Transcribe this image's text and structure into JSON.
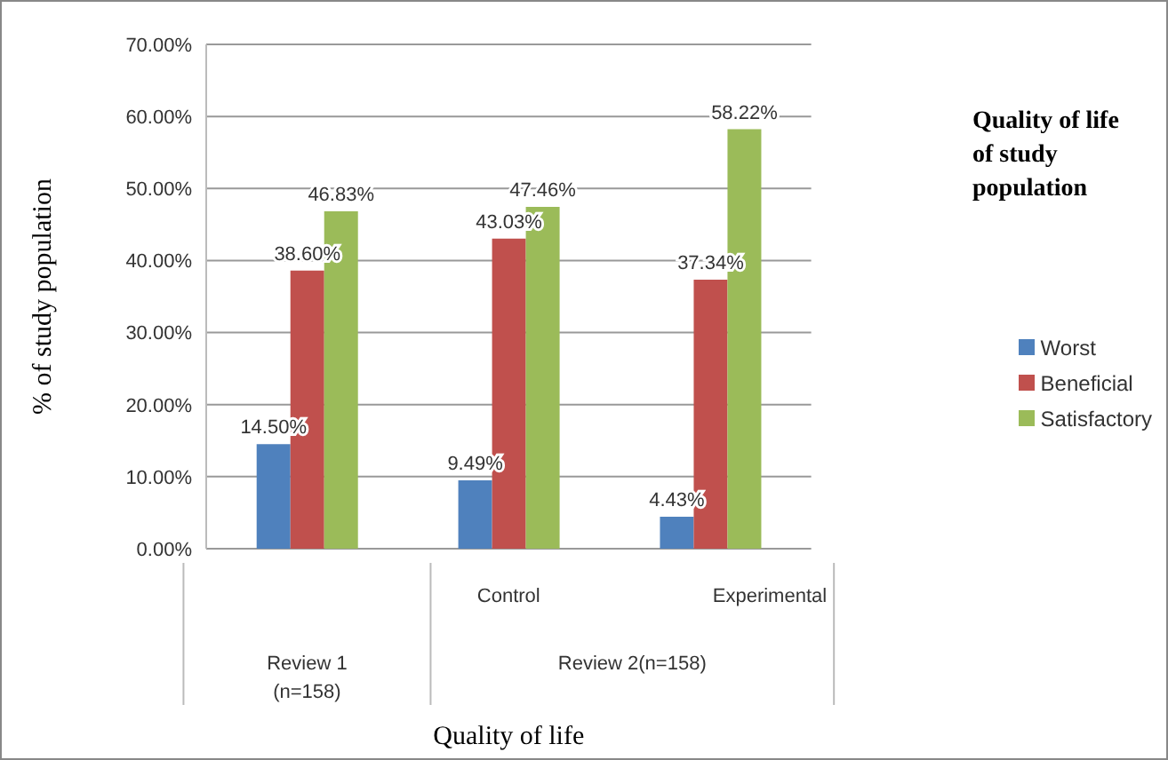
{
  "chart_data": {
    "type": "bar",
    "xlabel": "Quality of life",
    "ylabel": "% of study population",
    "legend_title": "Quality of life of study population",
    "categories": [
      null,
      "Control",
      "Experimental"
    ],
    "series": [
      {
        "name": "Worst",
        "color": "#4f81bd",
        "values": [
          14.5,
          9.49,
          4.43
        ],
        "value_labels": [
          "14.50%",
          "9.49%",
          "4.43%"
        ]
      },
      {
        "name": "Beneficial",
        "color": "#c0504d",
        "values": [
          38.6,
          43.03,
          37.34
        ],
        "value_labels": [
          "38.60%",
          "43.03%",
          "37.34%"
        ]
      },
      {
        "name": "Satisfactory",
        "color": "#9bbb59",
        "values": [
          46.83,
          47.46,
          58.22
        ],
        "value_labels": [
          "46.83%",
          "47.46%",
          "58.22%"
        ]
      }
    ],
    "annotations": [
      "Review 1\n(n=158)",
      "Review 2(n=158)"
    ],
    "ylim": [
      0,
      70
    ],
    "yticks": [
      {
        "value": 0,
        "label": "0.00%"
      },
      {
        "value": 10,
        "label": "10.00%"
      },
      {
        "value": 20,
        "label": "20.00%"
      },
      {
        "value": 30,
        "label": "30.00%"
      },
      {
        "value": 40,
        "label": "40.00%"
      },
      {
        "value": 50,
        "label": "50.00%"
      },
      {
        "value": 60,
        "label": "60.00%"
      },
      {
        "value": 70,
        "label": "70.00%"
      }
    ],
    "grid": "y",
    "legend": "right"
  }
}
